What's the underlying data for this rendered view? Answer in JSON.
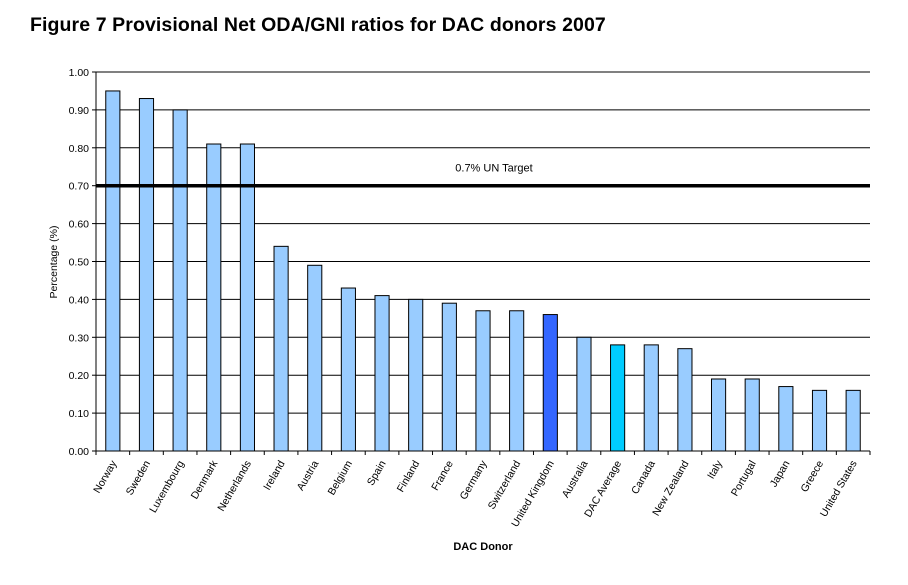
{
  "figure": {
    "title": "Figure 7 Provisional Net ODA/GNI ratios for DAC donors 2007"
  },
  "chart_data": {
    "type": "bar",
    "xlabel": "DAC Donor",
    "ylabel": "Percentage (%)",
    "ylim": [
      0,
      1.0
    ],
    "yticks": [
      "0.00",
      "0.10",
      "0.20",
      "0.30",
      "0.40",
      "0.50",
      "0.60",
      "0.70",
      "0.80",
      "0.90",
      "1.00"
    ],
    "grid": true,
    "categories": [
      "Norway",
      "Sweden",
      "Luxembourg",
      "Denmark",
      "Netherlands",
      "Ireland",
      "Austria",
      "Belgium",
      "Spain",
      "Finland",
      "France",
      "Germany",
      "Switzerland",
      "United Kingdom",
      "Australia",
      "DAC Average",
      "Canada",
      "New Zealand",
      "Italy",
      "Portugal",
      "Japan",
      "Greece",
      "United States"
    ],
    "values": [
      0.95,
      0.93,
      0.9,
      0.81,
      0.81,
      0.54,
      0.49,
      0.43,
      0.41,
      0.4,
      0.39,
      0.37,
      0.37,
      0.36,
      0.3,
      0.28,
      0.28,
      0.27,
      0.19,
      0.19,
      0.17,
      0.16,
      0.16
    ],
    "bar_colors": {
      "default": "#99ccff",
      "United Kingdom": "#3366ff",
      "DAC Average": "#00ccff"
    },
    "reference_line": {
      "value": 0.7,
      "label": "0.7% UN Target"
    }
  }
}
